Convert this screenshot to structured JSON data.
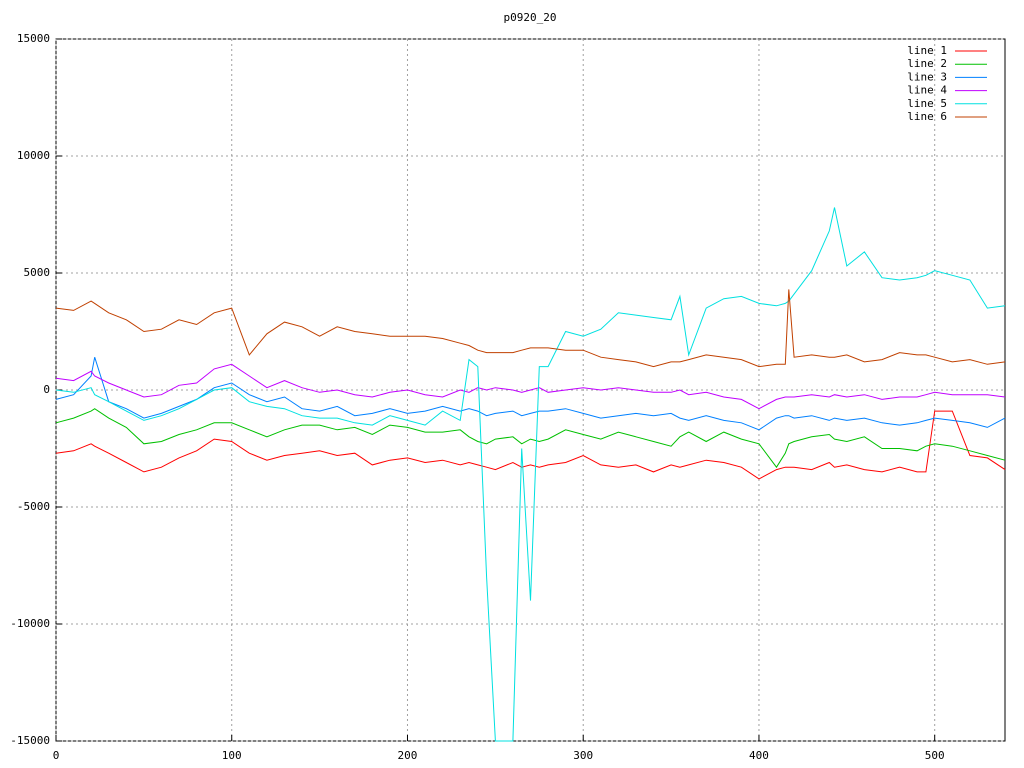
{
  "chart_data": {
    "type": "line",
    "title": "p0920_20",
    "x": [
      0,
      10,
      20,
      22,
      30,
      40,
      50,
      60,
      70,
      80,
      90,
      100,
      110,
      120,
      130,
      140,
      150,
      160,
      170,
      180,
      190,
      200,
      210,
      220,
      230,
      235,
      240,
      245,
      250,
      260,
      265,
      270,
      275,
      280,
      290,
      300,
      310,
      320,
      330,
      340,
      350,
      355,
      360,
      370,
      380,
      390,
      400,
      410,
      415,
      417,
      420,
      430,
      440,
      443,
      450,
      460,
      470,
      480,
      490,
      495,
      500,
      510,
      520,
      530,
      540
    ],
    "series": [
      {
        "name": "line 1",
        "color": "#ff0000",
        "values": [
          -2700,
          -2600,
          -2300,
          -2400,
          -2700,
          -3100,
          -3500,
          -3300,
          -2900,
          -2600,
          -2100,
          -2200,
          -2700,
          -3000,
          -2800,
          -2700,
          -2600,
          -2800,
          -2700,
          -3200,
          -3000,
          -2900,
          -3100,
          -3000,
          -3200,
          -3100,
          -3200,
          -3300,
          -3400,
          -3100,
          -3300,
          -3200,
          -3300,
          -3200,
          -3100,
          -2800,
          -3200,
          -3300,
          -3200,
          -3500,
          -3200,
          -3300,
          -3200,
          -3000,
          -3100,
          -3300,
          -3800,
          -3400,
          -3300,
          -3300,
          -3300,
          -3400,
          -3100,
          -3300,
          -3200,
          -3400,
          -3500,
          -3300,
          -3500,
          -3500,
          -900,
          -900,
          -2800,
          -2900,
          -3400
        ]
      },
      {
        "name": "line 2",
        "color": "#00c000",
        "values": [
          -1400,
          -1200,
          -900,
          -800,
          -1200,
          -1600,
          -2300,
          -2200,
          -1900,
          -1700,
          -1400,
          -1400,
          -1700,
          -2000,
          -1700,
          -1500,
          -1500,
          -1700,
          -1600,
          -1900,
          -1500,
          -1600,
          -1800,
          -1800,
          -1700,
          -2000,
          -2200,
          -2300,
          -2100,
          -2000,
          -2300,
          -2100,
          -2200,
          -2100,
          -1700,
          -1900,
          -2100,
          -1800,
          -2000,
          -2200,
          -2400,
          -2000,
          -1800,
          -2200,
          -1800,
          -2100,
          -2300,
          -3300,
          -2700,
          -2300,
          -2200,
          -2000,
          -1900,
          -2100,
          -2200,
          -2000,
          -2500,
          -2500,
          -2600,
          -2400,
          -2300,
          -2400,
          -2600,
          -2800,
          -3000
        ]
      },
      {
        "name": "line 3",
        "color": "#0080ff",
        "values": [
          -400,
          -200,
          600,
          1400,
          -500,
          -800,
          -1200,
          -1000,
          -700,
          -400,
          100,
          300,
          -200,
          -500,
          -300,
          -800,
          -900,
          -700,
          -1100,
          -1000,
          -800,
          -1000,
          -900,
          -700,
          -900,
          -800,
          -900,
          -1100,
          -1000,
          -900,
          -1100,
          -1000,
          -900,
          -900,
          -800,
          -1000,
          -1200,
          -1100,
          -1000,
          -1100,
          -1000,
          -1200,
          -1300,
          -1100,
          -1300,
          -1400,
          -1700,
          -1200,
          -1100,
          -1100,
          -1200,
          -1100,
          -1300,
          -1200,
          -1300,
          -1200,
          -1400,
          -1500,
          -1400,
          -1300,
          -1200,
          -1300,
          -1400,
          -1600,
          -1200
        ]
      },
      {
        "name": "line 4",
        "color": "#c000ff",
        "values": [
          500,
          400,
          800,
          600,
          300,
          0,
          -300,
          -200,
          200,
          300,
          900,
          1100,
          600,
          100,
          400,
          100,
          -100,
          0,
          -200,
          -300,
          -100,
          0,
          -200,
          -300,
          0,
          -100,
          100,
          0,
          100,
          0,
          -100,
          0,
          100,
          -100,
          0,
          100,
          0,
          100,
          0,
          -100,
          -100,
          0,
          -200,
          -100,
          -300,
          -400,
          -800,
          -400,
          -300,
          -300,
          -300,
          -200,
          -300,
          -200,
          -300,
          -200,
          -400,
          -300,
          -300,
          -200,
          -100,
          -200,
          -200,
          -200,
          -300
        ]
      },
      {
        "name": "line 5",
        "color": "#00e0e0",
        "values": [
          0,
          -100,
          100,
          -200,
          -500,
          -900,
          -1300,
          -1100,
          -800,
          -400,
          0,
          100,
          -500,
          -700,
          -800,
          -1100,
          -1200,
          -1200,
          -1400,
          -1500,
          -1100,
          -1300,
          -1500,
          -900,
          -1300,
          1300,
          1000,
          -8000,
          -15000,
          -15000,
          -2500,
          -9000,
          1000,
          1000,
          2500,
          2300,
          2600,
          3300,
          3200,
          3100,
          3000,
          4000,
          1500,
          3500,
          3900,
          4000,
          3700,
          3600,
          3700,
          3800,
          4100,
          5100,
          6800,
          7800,
          5300,
          5900,
          4800,
          4700,
          4800,
          4900,
          5100,
          4900,
          4700,
          3500,
          3600
        ]
      },
      {
        "name": "line 6",
        "color": "#c04000",
        "values": [
          3500,
          3400,
          3800,
          3700,
          3300,
          3000,
          2500,
          2600,
          3000,
          2800,
          3300,
          3500,
          1500,
          2400,
          2900,
          2700,
          2300,
          2700,
          2500,
          2400,
          2300,
          2300,
          2300,
          2200,
          2000,
          1900,
          1700,
          1600,
          1600,
          1600,
          1700,
          1800,
          1800,
          1800,
          1700,
          1700,
          1400,
          1300,
          1200,
          1000,
          1200,
          1200,
          1300,
          1500,
          1400,
          1300,
          1000,
          1100,
          1100,
          4300,
          1400,
          1500,
          1400,
          1400,
          1500,
          1200,
          1300,
          1600,
          1500,
          1500,
          1400,
          1200,
          1300,
          1100,
          1200
        ]
      }
    ],
    "xlim": [
      0,
      540
    ],
    "ylim": [
      -15000,
      15000
    ],
    "xticks": [
      0,
      100,
      200,
      300,
      400,
      500
    ],
    "yticks": [
      -15000,
      -10000,
      -5000,
      0,
      5000,
      10000,
      15000
    ],
    "grid": true,
    "legend": "top-right"
  }
}
